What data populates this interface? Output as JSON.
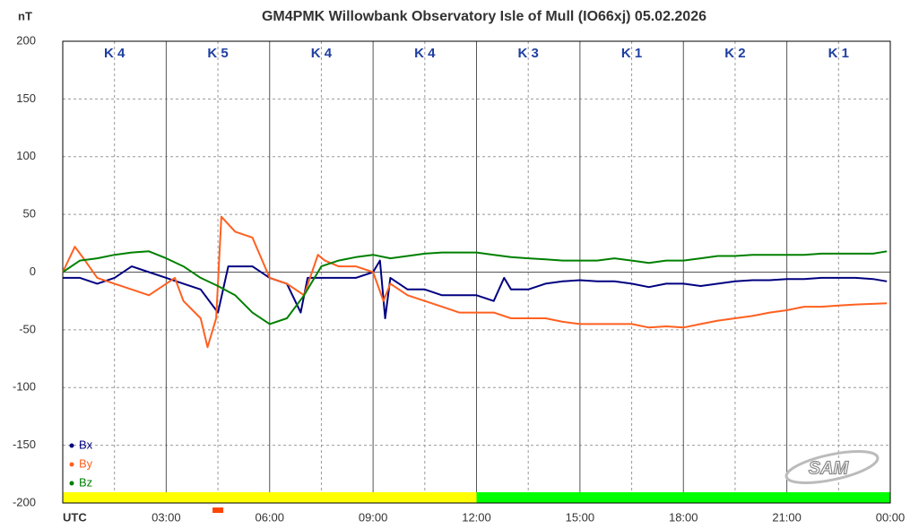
{
  "chart_data": {
    "type": "line",
    "title": "GM4PMK Willowbank Observatory Isle of Mull  (IO66xj)  05.02.2026",
    "y_label": "nT",
    "logo": "SAM",
    "xlim": [
      0,
      24
    ],
    "xticks": [
      {
        "value": 0,
        "label": "UTC"
      },
      {
        "value": 3,
        "label": "03:00"
      },
      {
        "value": 6,
        "label": "06:00"
      },
      {
        "value": 9,
        "label": "09:00"
      },
      {
        "value": 12,
        "label": "12:00"
      },
      {
        "value": 15,
        "label": "15:00"
      },
      {
        "value": 18,
        "label": "18:00"
      },
      {
        "value": 21,
        "label": "21:00"
      },
      {
        "value": 24,
        "label": "00:00"
      }
    ],
    "ylim": [
      -200,
      200
    ],
    "yticks": [
      -200,
      -150,
      -100,
      -50,
      0,
      50,
      100,
      150,
      200
    ],
    "grid": true,
    "legend": "lower left",
    "k_labels": [
      "K 4",
      "K 5",
      "K 4",
      "K 4",
      "K 3",
      "K 1",
      "K 2",
      "K 1"
    ],
    "status_bar": [
      {
        "start": 0,
        "end": 12,
        "color": "#ffff00"
      },
      {
        "start": 12,
        "end": 24,
        "color": "#00ff00"
      }
    ],
    "markers": [
      {
        "x": 4.5,
        "color": "#ff4500"
      }
    ],
    "series": [
      {
        "name": "Bx",
        "color": "#000080",
        "x": [
          0,
          0.5,
          1,
          1.5,
          2,
          2.5,
          3,
          3.5,
          4,
          4.5,
          4.8,
          5,
          5.5,
          6,
          6.5,
          6.9,
          7.1,
          7.5,
          8,
          8.5,
          9,
          9.2,
          9.35,
          9.5,
          10,
          10.5,
          11,
          11.5,
          12,
          12.5,
          12.8,
          13,
          13.5,
          14,
          14.5,
          15,
          15.5,
          16,
          16.5,
          17,
          17.5,
          18,
          18.5,
          19,
          19.5,
          20,
          20.5,
          21,
          21.5,
          22,
          22.5,
          23,
          23.5,
          23.9
        ],
        "values": [
          -5,
          -5,
          -10,
          -5,
          5,
          0,
          -5,
          -10,
          -15,
          -35,
          5,
          5,
          5,
          -5,
          -10,
          -35,
          -5,
          -5,
          -5,
          -5,
          0,
          10,
          -40,
          -5,
          -15,
          -15,
          -20,
          -20,
          -20,
          -25,
          -5,
          -15,
          -15,
          -10,
          -8,
          -7,
          -8,
          -8,
          -10,
          -13,
          -10,
          -10,
          -12,
          -10,
          -8,
          -7,
          -7,
          -6,
          -6,
          -5,
          -5,
          -5,
          -6,
          -8
        ]
      },
      {
        "name": "By",
        "color": "#ff6020",
        "x": [
          0,
          0.35,
          0.6,
          1,
          1.5,
          2,
          2.5,
          3,
          3.25,
          3.5,
          4,
          4.2,
          4.45,
          4.6,
          5,
          5.5,
          6,
          6.5,
          7,
          7.4,
          7.6,
          8,
          8.5,
          9,
          9.3,
          9.5,
          10,
          10.5,
          11,
          11.5,
          12,
          12.5,
          13,
          13.5,
          14,
          14.5,
          15,
          15.5,
          16,
          16.5,
          17,
          17.5,
          18,
          18.5,
          19,
          19.5,
          20,
          20.5,
          21,
          21.5,
          22,
          22.5,
          23,
          23.9
        ],
        "values": [
          0,
          22,
          12,
          -5,
          -10,
          -15,
          -20,
          -10,
          -5,
          -25,
          -40,
          -65,
          -40,
          48,
          35,
          30,
          -5,
          -10,
          -20,
          15,
          10,
          5,
          5,
          0,
          -25,
          -10,
          -20,
          -25,
          -30,
          -35,
          -35,
          -35,
          -40,
          -40,
          -40,
          -43,
          -45,
          -45,
          -45,
          -45,
          -48,
          -47,
          -48,
          -45,
          -42,
          -40,
          -38,
          -35,
          -33,
          -30,
          -30,
          -29,
          -28,
          -27
        ]
      },
      {
        "name": "Bz",
        "color": "#008000",
        "x": [
          0,
          0.5,
          1,
          1.5,
          2,
          2.5,
          3,
          3.5,
          4,
          4.5,
          5,
          5.5,
          6,
          6.5,
          7,
          7.5,
          8,
          8.5,
          9,
          9.5,
          10,
          10.5,
          11,
          11.5,
          12,
          12.5,
          13,
          13.5,
          14,
          14.5,
          15,
          15.5,
          16,
          16.5,
          17,
          17.5,
          18,
          18.5,
          19,
          19.5,
          20,
          20.5,
          21,
          21.5,
          22,
          22.5,
          23,
          23.5,
          23.9
        ],
        "values": [
          0,
          10,
          12,
          15,
          17,
          18,
          12,
          5,
          -5,
          -12,
          -20,
          -35,
          -45,
          -40,
          -20,
          5,
          10,
          13,
          15,
          12,
          14,
          16,
          17,
          17,
          17,
          15,
          13,
          12,
          11,
          10,
          10,
          10,
          12,
          10,
          8,
          10,
          10,
          12,
          14,
          14,
          15,
          15,
          15,
          15,
          16,
          16,
          16,
          16,
          18
        ]
      }
    ]
  }
}
